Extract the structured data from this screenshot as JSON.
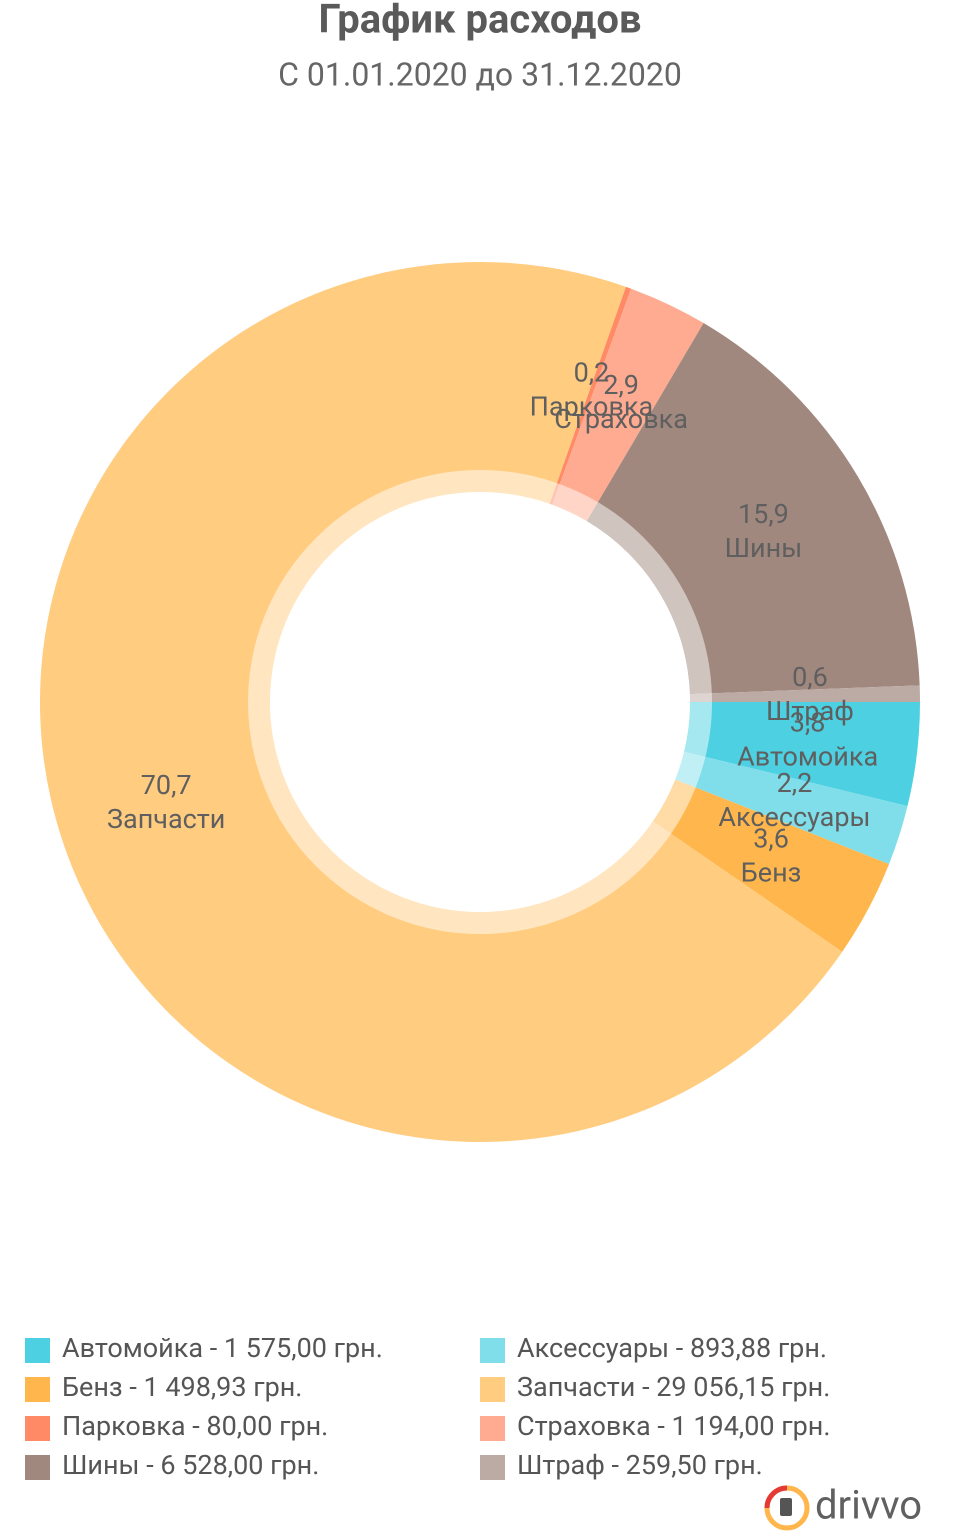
{
  "chart_data": {
    "type": "donut",
    "title": "График расходов",
    "subtitle": "С 01.01.2020 до 31.12.2020",
    "categories": [
      "Автомойка",
      "Аксессуары",
      "Бенз",
      "Запчасти",
      "Парковка",
      "Страховка",
      "Шины",
      "Штраф"
    ],
    "values": [
      3.8,
      2.2,
      3.6,
      70.7,
      0.2,
      2.9,
      15.9,
      0.6
    ],
    "value_labels": [
      "3,8",
      "2,2",
      "3,6",
      "70,7",
      "0,2",
      "2,9",
      "15,9",
      "0,6"
    ],
    "colors": [
      "#4dd0e1",
      "#80deea",
      "#ffb74d",
      "#ffcc80",
      "#ff8a65",
      "#ffab91",
      "#a1887f",
      "#bcaaa4"
    ],
    "legend": [
      "Автомойка - 1 575,00 грн.",
      "Аксессуары - 893,88 грн.",
      "Бенз - 1 498,93 грн.",
      "Запчасти - 29 056,15 грн.",
      "Парковка - 80,00 грн.",
      "Страховка - 1 194,00 грн.",
      "Шины - 6 528,00 грн.",
      "Штраф - 259,50 грн."
    ]
  },
  "brand": "drivvo"
}
